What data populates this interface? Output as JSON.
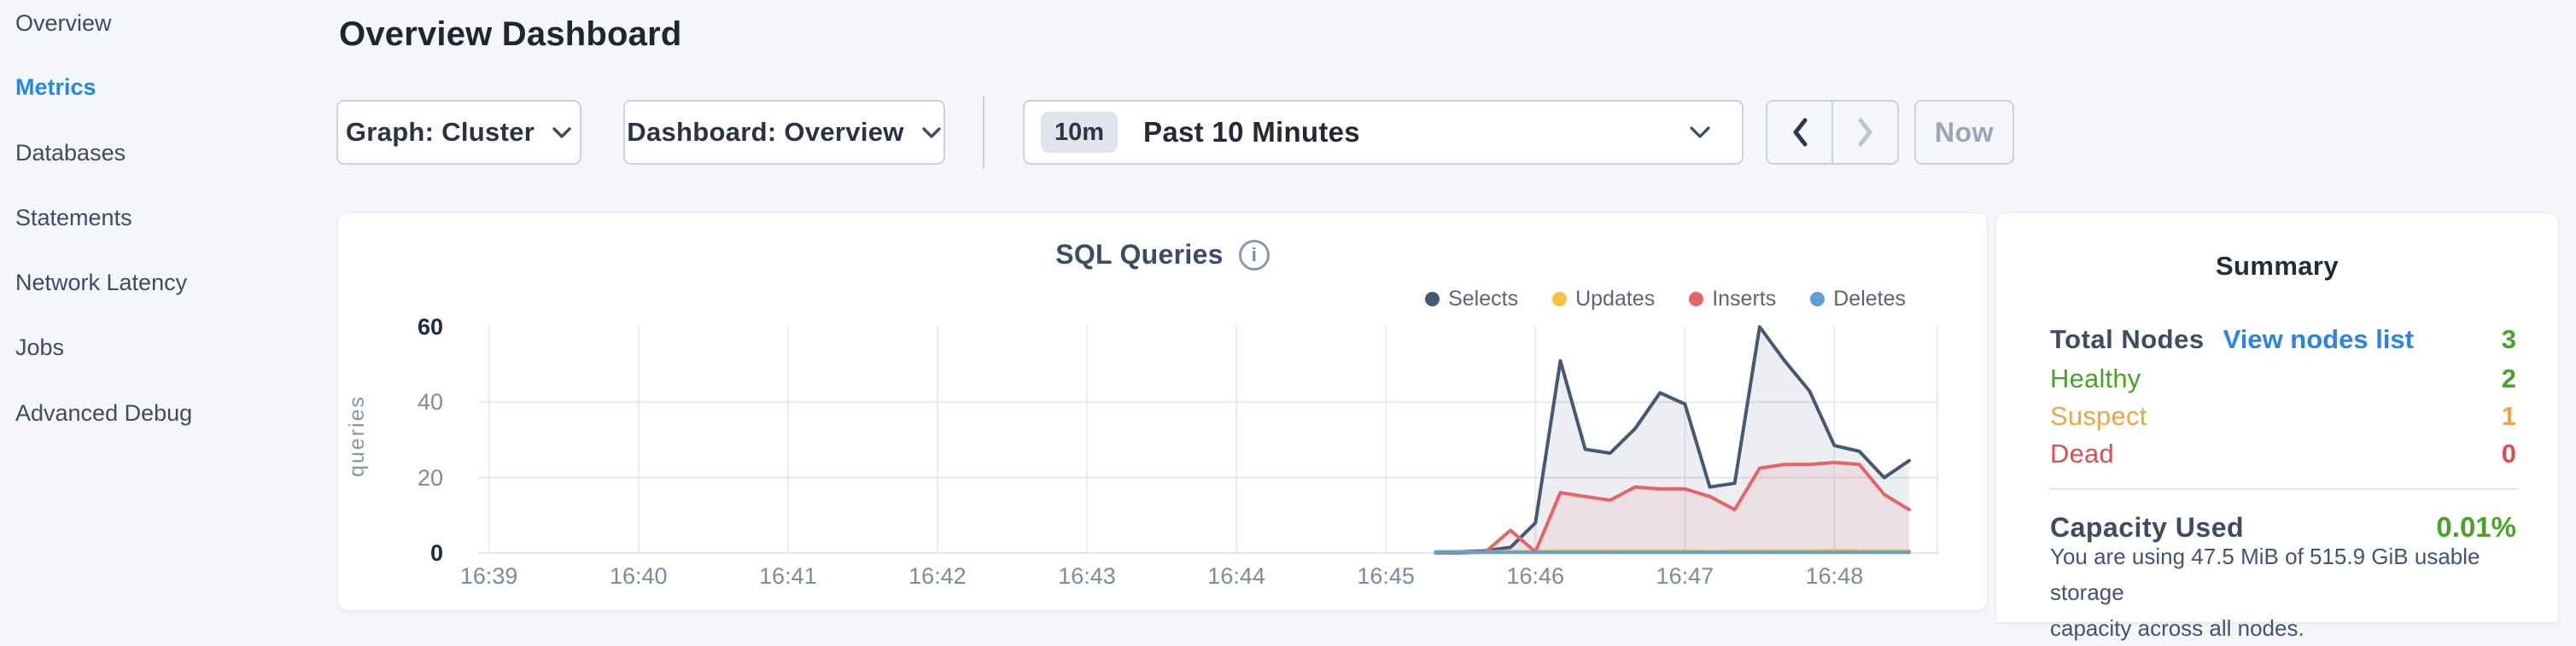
{
  "sidebar": {
    "items": [
      {
        "label": "Overview",
        "active": false
      },
      {
        "label": "Metrics",
        "active": true
      },
      {
        "label": "Databases",
        "active": false
      },
      {
        "label": "Statements",
        "active": false
      },
      {
        "label": "Network Latency",
        "active": false
      },
      {
        "label": "Jobs",
        "active": false
      },
      {
        "label": "Advanced Debug",
        "active": false
      }
    ]
  },
  "header": {
    "title": "Overview Dashboard"
  },
  "controls": {
    "graph_dropdown": "Graph: Cluster",
    "dashboard_dropdown": "Dashboard: Overview",
    "time_badge": "10m",
    "time_label": "Past 10 Minutes",
    "now_label": "Now"
  },
  "icons": {
    "info": "i"
  },
  "colors": {
    "accent_blue": "#2189ea",
    "link_blue": "#2b83e8",
    "healthy_green": "#4aa327",
    "suspect_orange": "#f2a444",
    "dead_red": "#e24b4f",
    "navy_label": "#3d4b63"
  },
  "chart_data": {
    "type": "area",
    "title": "SQL Queries",
    "ylabel": "queries",
    "ylim": [
      0,
      60
    ],
    "y_ticks": [
      0,
      20,
      40,
      60
    ],
    "x_tick_labels": [
      "16:39",
      "16:40",
      "16:41",
      "16:42",
      "16:43",
      "16:44",
      "16:45",
      "16:46",
      "16:47",
      "16:48"
    ],
    "x_tick_interval_sec": 60,
    "x_domain_sec": [
      -4,
      582
    ],
    "grid": true,
    "legend_position": "top-right",
    "sample_interval_sec": 10,
    "series_start_sec": 380,
    "series_start_label": "16:45:20",
    "series": [
      {
        "name": "Selects",
        "color": "#475872",
        "fill": "rgba(71,88,114,0.10)",
        "values": [
          0.3,
          0.3,
          0.6,
          1.5,
          8,
          51,
          27.5,
          26.5,
          33,
          42.5,
          39.5,
          17.5,
          18.5,
          60,
          51,
          43,
          28.5,
          27,
          20,
          24.5
        ]
      },
      {
        "name": "Updates",
        "color": "#f5c342",
        "fill": null,
        "values": [
          0.2,
          0.2,
          0.3,
          0.4,
          0.4,
          0.5,
          0.5,
          0.6,
          0.5,
          0.5,
          0.5,
          0.4,
          0.5,
          0.6,
          0.5,
          0.5,
          0.7,
          0.6,
          0.5,
          0.5
        ]
      },
      {
        "name": "Inserts",
        "color": "#e5646a",
        "fill": "rgba(229,100,106,0.10)",
        "values": [
          0,
          0,
          0.3,
          6,
          0.3,
          16,
          15,
          14,
          17.5,
          17,
          17,
          15,
          11.5,
          22.5,
          23.5,
          23.5,
          24,
          23.5,
          15.5,
          11.5
        ]
      },
      {
        "name": "Deletes",
        "color": "#5da0d8",
        "fill": null,
        "values": [
          0.15,
          0.15,
          0.15,
          0.15,
          0.15,
          0.15,
          0.15,
          0.15,
          0.15,
          0.15,
          0.15,
          0.15,
          0.15,
          0.15,
          0.15,
          0.15,
          0.15,
          0.15,
          0.15,
          0.15
        ]
      }
    ]
  },
  "summary": {
    "title": "Summary",
    "rows": [
      {
        "label": "Total Nodes",
        "link": "View nodes list",
        "value": "3",
        "label_color": "#3d4b63",
        "link_color": "#2b83e8",
        "value_color": "#4aa327"
      },
      {
        "label": "Healthy",
        "value": "2",
        "label_color": "#4aa327",
        "value_color": "#4aa327"
      },
      {
        "label": "Suspect",
        "value": "1",
        "label_color": "#f2a444",
        "value_color": "#f2a444"
      },
      {
        "label": "Dead",
        "value": "0",
        "label_color": "#e24b4f",
        "value_color": "#e24b4f"
      }
    ],
    "capacity": {
      "label": "Capacity Used",
      "value": "0.01%",
      "value_color": "#4aa327",
      "description": "You are using 47.5 MiB of 515.9 GiB usable storage\ncapacity across all nodes."
    }
  }
}
